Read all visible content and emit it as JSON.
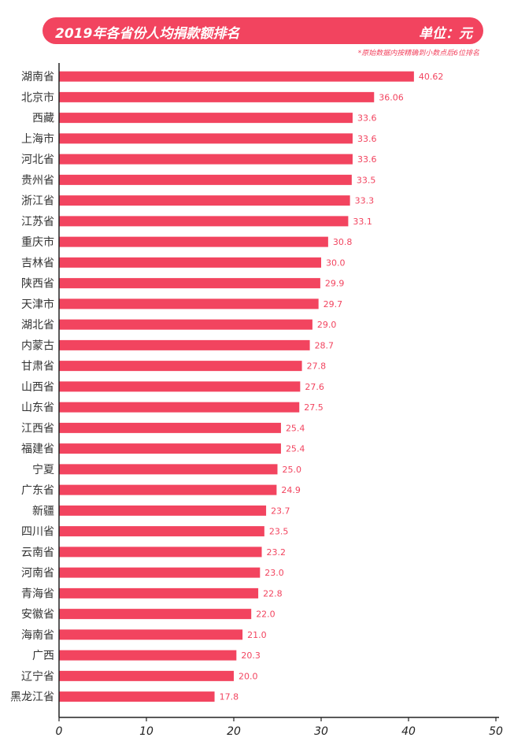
{
  "header": {
    "title": "2019年各省份人均捐款额排名",
    "unit": "单位：元",
    "note": "*原始数据内按精确到小数点后6位排名"
  },
  "colors": {
    "accent": "#f2445f",
    "axis": "#222222",
    "label_text": "#333333"
  },
  "chart_data": {
    "type": "bar",
    "orientation": "horizontal",
    "title": "2019年各省份人均捐款额排名",
    "xlabel": "",
    "ylabel": "",
    "xlim": [
      0,
      50
    ],
    "ticks": [
      0,
      10,
      20,
      30,
      40,
      50
    ],
    "grid": false,
    "categories": [
      "湖南省",
      "北京市",
      "西藏",
      "上海市",
      "河北省",
      "贵州省",
      "浙江省",
      "江苏省",
      "重庆市",
      "吉林省",
      "陕西省",
      "天津市",
      "湖北省",
      "内蒙古",
      "甘肃省",
      "山西省",
      "山东省",
      "江西省",
      "福建省",
      "宁夏",
      "广东省",
      "新疆",
      "四川省",
      "云南省",
      "河南省",
      "青海省",
      "安徽省",
      "海南省",
      "广西",
      "辽宁省",
      "黑龙江省"
    ],
    "values": [
      40.62,
      36.06,
      33.6,
      33.6,
      33.6,
      33.5,
      33.3,
      33.1,
      30.8,
      30.0,
      29.9,
      29.7,
      29.0,
      28.7,
      27.8,
      27.6,
      27.5,
      25.4,
      25.4,
      25.0,
      24.9,
      23.7,
      23.5,
      23.2,
      23.0,
      22.8,
      22.0,
      21.0,
      20.3,
      20.0,
      17.8
    ],
    "value_labels": [
      "40.62",
      "36.06",
      "33.6",
      "33.6",
      "33.6",
      "33.5",
      "33.3",
      "33.1",
      "30.8",
      "30.0",
      "29.9",
      "29.7",
      "29.0",
      "28.7",
      "27.8",
      "27.6",
      "27.5",
      "25.4",
      "25.4",
      "25.0",
      "24.9",
      "23.7",
      "23.5",
      "23.2",
      "23.0",
      "22.8",
      "22.0",
      "21.0",
      "20.3",
      "20.0",
      "17.8"
    ]
  }
}
